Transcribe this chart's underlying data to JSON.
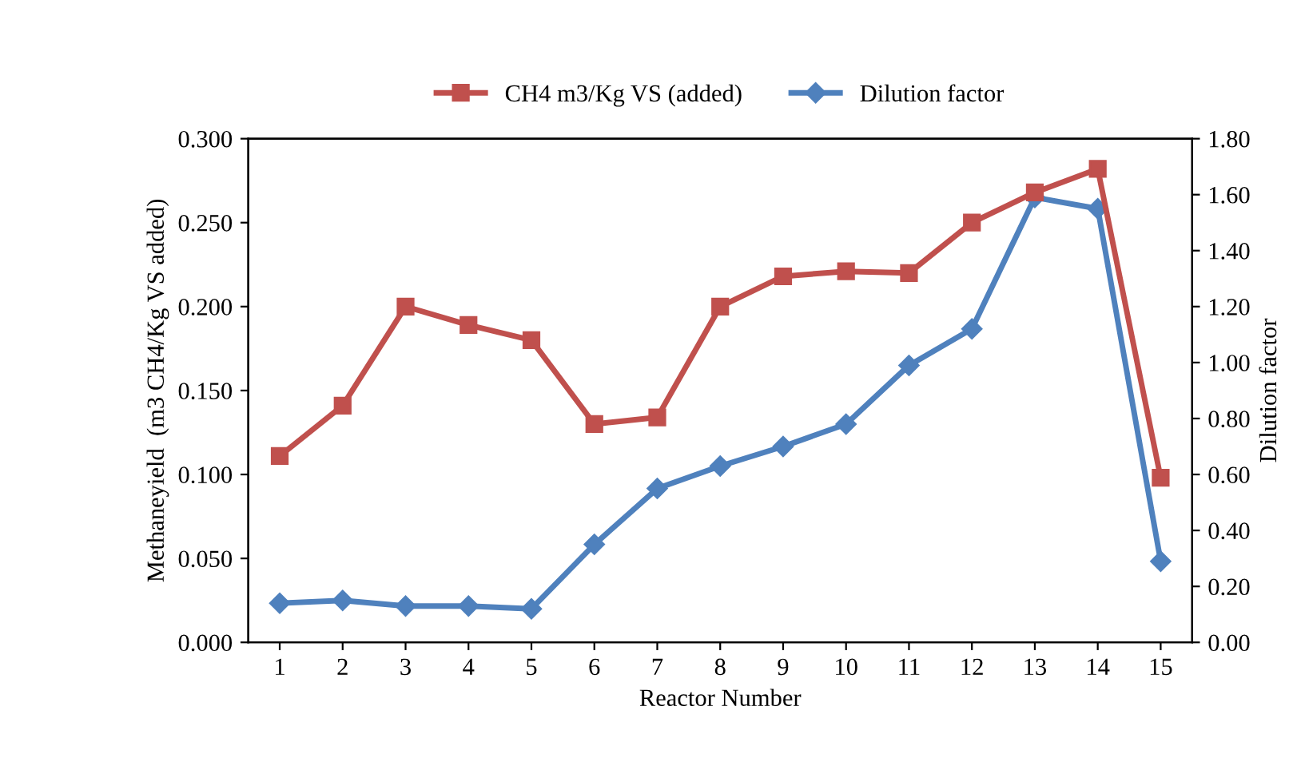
{
  "chart_data": {
    "type": "line",
    "xlabel": "Reactor Number",
    "ylabel": "Methaneyield  (m3 CH4/Kg VS added)",
    "y2label": "Dilution factor",
    "categories": [
      "1",
      "2",
      "3",
      "4",
      "5",
      "6",
      "7",
      "8",
      "9",
      "10",
      "11",
      "12",
      "13",
      "14",
      "15"
    ],
    "series": [
      {
        "name": "CH4 m3/Kg VS (added)",
        "color": "#c0504d",
        "marker": "square",
        "values": [
          0.111,
          0.141,
          0.2,
          0.189,
          0.18,
          0.13,
          0.134,
          0.2,
          0.218,
          0.221,
          0.22,
          0.25,
          0.268,
          0.282,
          0.098
        ]
      },
      {
        "name": "Dilution factor",
        "color": "#4f81bd",
        "marker": "diamond",
        "axis": "y2",
        "values": [
          0.14,
          0.15,
          0.13,
          0.13,
          0.12,
          0.35,
          0.55,
          0.63,
          0.7,
          0.78,
          0.99,
          1.12,
          1.59,
          1.55,
          0.29
        ]
      }
    ],
    "ylim": [
      0,
      0.3
    ],
    "yticks": [
      {
        "value": 0,
        "label": "0.000"
      },
      {
        "value": 0.05,
        "label": "0.050"
      },
      {
        "value": 0.1,
        "label": "0.100"
      },
      {
        "value": 0.15,
        "label": "0.150"
      },
      {
        "value": 0.2,
        "label": "0.200"
      },
      {
        "value": 0.25,
        "label": "0.250"
      },
      {
        "value": 0.3,
        "label": "0.300"
      }
    ],
    "y2lim": [
      0,
      1.8
    ],
    "y2ticks": [
      {
        "value": 0,
        "label": "0.00"
      },
      {
        "value": 0.2,
        "label": "0.20"
      },
      {
        "value": 0.4,
        "label": "0.40"
      },
      {
        "value": 0.6,
        "label": "0.60"
      },
      {
        "value": 0.8,
        "label": "0.80"
      },
      {
        "value": 1.0,
        "label": "1.00"
      },
      {
        "value": 1.2,
        "label": "1.20"
      },
      {
        "value": 1.4,
        "label": "1.40"
      },
      {
        "value": 1.6,
        "label": "1.60"
      },
      {
        "value": 1.8,
        "label": "1.80"
      }
    ],
    "legend": "top",
    "grid": false,
    "line_style": "solid"
  }
}
